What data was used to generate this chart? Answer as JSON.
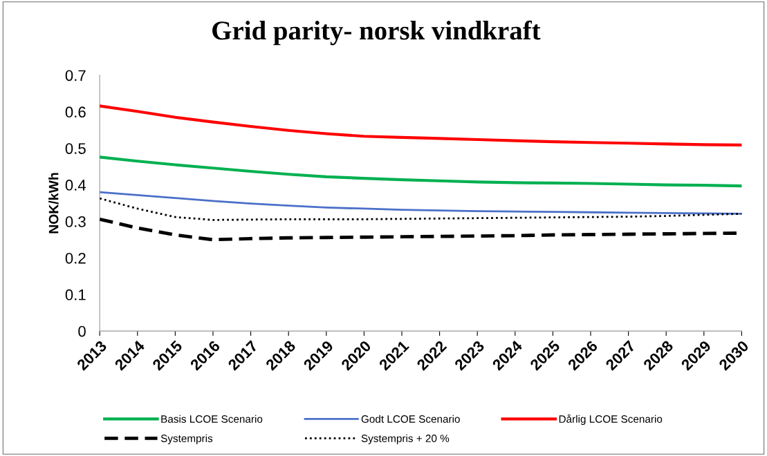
{
  "chart_data": {
    "type": "line",
    "title": "Grid parity- norsk vindkraft",
    "ylabel": "NOK/kWh",
    "categories": [
      "2013",
      "2014",
      "2015",
      "2016",
      "2017",
      "2018",
      "2019",
      "2020",
      "2021",
      "2022",
      "2023",
      "2024",
      "2025",
      "2026",
      "2027",
      "2028",
      "2029",
      "2030"
    ],
    "ylim": [
      0,
      0.7
    ],
    "yticks": [
      0,
      0.1,
      0.2,
      0.3,
      0.4,
      0.5,
      0.6,
      0.7
    ],
    "grid": false,
    "legend": "bottom",
    "marker": "none",
    "series": [
      {
        "name": "Basis LCOE Scenario",
        "color": "#00b050",
        "line_style": "solid",
        "values": [
          0.476,
          0.465,
          0.455,
          0.446,
          0.437,
          0.429,
          0.422,
          0.418,
          0.414,
          0.411,
          0.408,
          0.406,
          0.405,
          0.404,
          0.402,
          0.4,
          0.399,
          0.397
        ]
      },
      {
        "name": "Godt LCOE Scenario",
        "color": "#4a70c8",
        "line_style": "solid",
        "values": [
          0.38,
          0.372,
          0.364,
          0.356,
          0.349,
          0.343,
          0.338,
          0.335,
          0.332,
          0.33,
          0.328,
          0.327,
          0.326,
          0.325,
          0.324,
          0.323,
          0.322,
          0.321
        ]
      },
      {
        "name": "Dårlig LCOE Scenario",
        "color": "#ff0000",
        "line_style": "solid",
        "values": [
          0.616,
          0.601,
          0.585,
          0.572,
          0.56,
          0.549,
          0.54,
          0.533,
          0.53,
          0.527,
          0.524,
          0.521,
          0.518,
          0.516,
          0.514,
          0.512,
          0.51,
          0.509
        ]
      },
      {
        "name": "Systempris",
        "color": "#000000",
        "line_style": "dashed",
        "values": [
          0.306,
          0.282,
          0.263,
          0.25,
          0.253,
          0.255,
          0.256,
          0.257,
          0.258,
          0.259,
          0.26,
          0.261,
          0.263,
          0.264,
          0.265,
          0.266,
          0.267,
          0.268
        ]
      },
      {
        "name": "Systempris + 20 %",
        "color": "#000000",
        "line_style": "dotted",
        "values": [
          0.363,
          0.335,
          0.312,
          0.304,
          0.305,
          0.306,
          0.306,
          0.306,
          0.307,
          0.308,
          0.309,
          0.31,
          0.311,
          0.312,
          0.313,
          0.315,
          0.318,
          0.321
        ]
      }
    ]
  }
}
